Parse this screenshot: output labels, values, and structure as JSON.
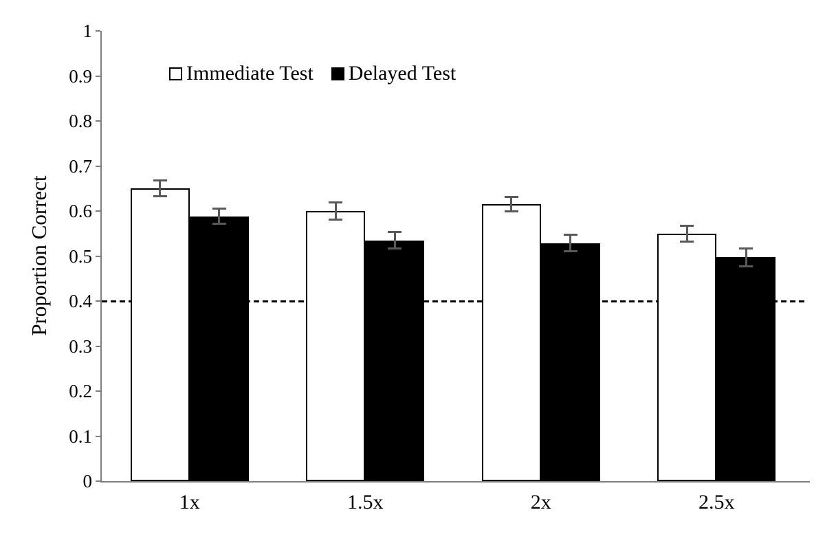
{
  "chart_data": {
    "type": "bar",
    "title": "",
    "xlabel": "",
    "ylabel": "Proportion Correct",
    "categories": [
      "1x",
      "1.5x",
      "2x",
      "2.5x"
    ],
    "series": [
      {
        "name": "Immediate Test",
        "fill": "#ffffff",
        "stroke": "#000000",
        "values": [
          0.65,
          0.6,
          0.615,
          0.55
        ],
        "errors": [
          0.02,
          0.022,
          0.018,
          0.02
        ]
      },
      {
        "name": "Delayed Test",
        "fill": "#000000",
        "stroke": "#000000",
        "values": [
          0.588,
          0.535,
          0.529,
          0.497
        ],
        "errors": [
          0.019,
          0.02,
          0.021,
          0.022
        ]
      }
    ],
    "ylim": [
      0,
      1
    ],
    "ytick_step": 0.1,
    "ytick_labels": [
      "0",
      "0.1",
      "0.2",
      "0.3",
      "0.4",
      "0.5",
      "0.6",
      "0.7",
      "0.8",
      "0.9",
      "1"
    ],
    "reference_line": {
      "value": 0.4,
      "style": "dashed",
      "color": "#000000"
    },
    "legend": {
      "position": "top-left-inside"
    },
    "grid": false,
    "axis_color": "#7f7f7f",
    "error_bar_color": "#595959",
    "background": "#ffffff"
  }
}
